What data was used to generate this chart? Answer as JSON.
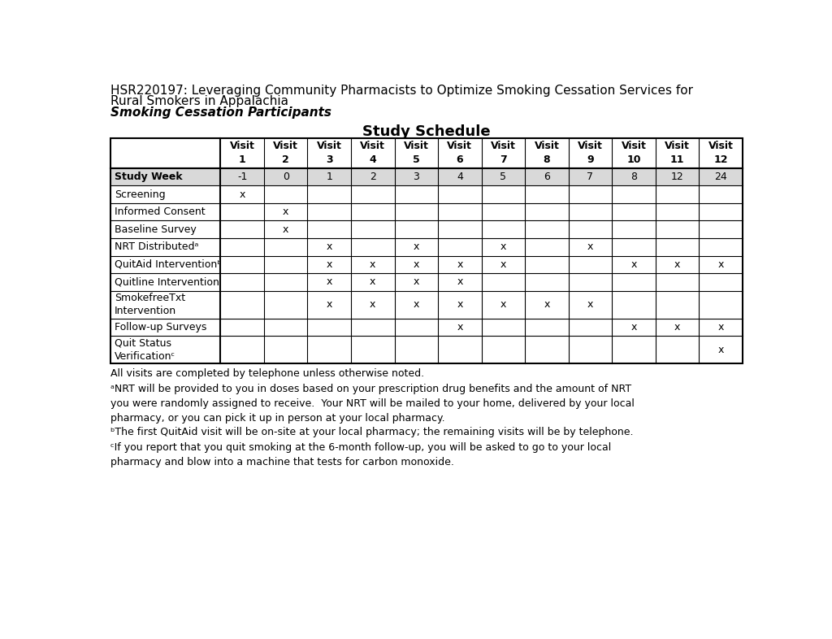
{
  "title_line1": "HSR220197: Leveraging Community Pharmacists to Optimize Smoking Cessation Services for",
  "title_line2": "Rural Smokers in Appalachia",
  "title_line3": "Smoking Cessation Participants",
  "table_title": "Study Schedule",
  "n_visit_cols": 12,
  "rows": [
    {
      "label": "Study Week",
      "bold": true,
      "shaded": true,
      "two_line": false,
      "values": [
        "-1",
        "0",
        "1",
        "2",
        "3",
        "4",
        "5",
        "6",
        "7",
        "8",
        "12",
        "24"
      ]
    },
    {
      "label": "Screening",
      "bold": false,
      "shaded": false,
      "two_line": false,
      "values": [
        "x",
        "",
        "",
        "",
        "",
        "",
        "",
        "",
        "",
        "",
        "",
        ""
      ]
    },
    {
      "label": "Informed Consent",
      "bold": false,
      "shaded": false,
      "two_line": false,
      "values": [
        "",
        "x",
        "",
        "",
        "",
        "",
        "",
        "",
        "",
        "",
        "",
        ""
      ]
    },
    {
      "label": "Baseline Survey",
      "bold": false,
      "shaded": false,
      "two_line": false,
      "values": [
        "",
        "x",
        "",
        "",
        "",
        "",
        "",
        "",
        "",
        "",
        "",
        ""
      ]
    },
    {
      "label": "NRT Distributedᵃ",
      "bold": false,
      "shaded": false,
      "two_line": false,
      "values": [
        "",
        "",
        "x",
        "",
        "x",
        "",
        "x",
        "",
        "x",
        "",
        "",
        ""
      ]
    },
    {
      "label": "QuitAid Interventionᵇ",
      "bold": false,
      "shaded": false,
      "two_line": false,
      "values": [
        "",
        "",
        "x",
        "x",
        "x",
        "x",
        "x",
        "",
        "",
        "x",
        "x",
        "x"
      ]
    },
    {
      "label": "Quitline Intervention",
      "bold": false,
      "shaded": false,
      "two_line": false,
      "values": [
        "",
        "",
        "x",
        "x",
        "x",
        "x",
        "",
        "",
        "",
        "",
        "",
        ""
      ]
    },
    {
      "label": "SmokefreeTxt\nIntervention",
      "bold": false,
      "shaded": false,
      "two_line": true,
      "values": [
        "",
        "",
        "x",
        "x",
        "x",
        "x",
        "x",
        "x",
        "x",
        "",
        "",
        ""
      ]
    },
    {
      "label": "Follow-up Surveys",
      "bold": false,
      "shaded": false,
      "two_line": false,
      "values": [
        "",
        "",
        "",
        "",
        "",
        "x",
        "",
        "",
        "",
        "x",
        "x",
        "x"
      ]
    },
    {
      "label": "Quit Status\nVerificationᶜ",
      "bold": false,
      "shaded": false,
      "two_line": true,
      "values": [
        "",
        "",
        "",
        "",
        "",
        "",
        "",
        "",
        "",
        "",
        "",
        "x"
      ]
    }
  ],
  "footnotes": [
    "All visits are completed by telephone unless otherwise noted.",
    "ᵃNRT will be provided to you in doses based on your prescription drug benefits and the amount of NRT\nyou were randomly assigned to receive.  Your NRT will be mailed to your home, delivered by your local\npharmacy, or you can pick it up in person at your local pharmacy.",
    "ᵇThe first QuitAid visit will be on-site at your local pharmacy; the remaining visits will be by telephone.",
    "ᶜIf you report that you quit smoking at the 6-month follow-up, you will be asked to go to your local\npharmacy and blow into a machine that tests for carbon monoxide."
  ],
  "bg_color": "#ffffff",
  "shaded_row_color": "#d9d9d9",
  "table_border_color": "#000000",
  "text_color": "#000000",
  "title_fontsize": 11,
  "table_title_fontsize": 13,
  "header_fontsize": 9,
  "cell_fontsize": 9,
  "footnote_fontsize": 9
}
